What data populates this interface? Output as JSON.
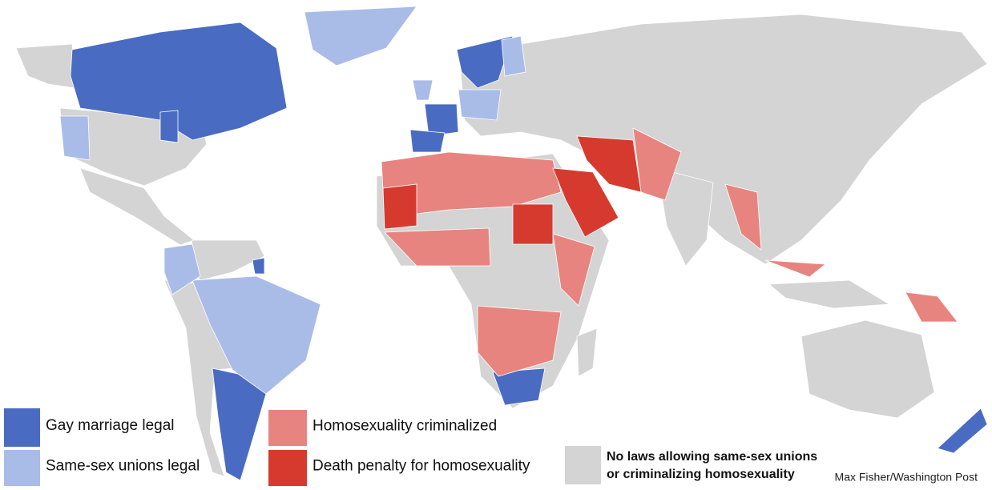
{
  "legend": [
    {
      "label": "Gay marriage legal",
      "color": "#4a6bc2"
    },
    {
      "label": "Same-sex unions legal",
      "color": "#a9bce8"
    },
    {
      "label": "Homosexuality criminalized",
      "color": "#e8847f"
    },
    {
      "label": "Death penalty for homosexuality",
      "color": "#d63a2f"
    },
    {
      "lines": [
        "No laws allowing same-sex unions",
        "or criminalizing homosexuality"
      ],
      "color": "#d4d4d4"
    }
  ],
  "credit": "Max Fisher/Washington Post"
}
